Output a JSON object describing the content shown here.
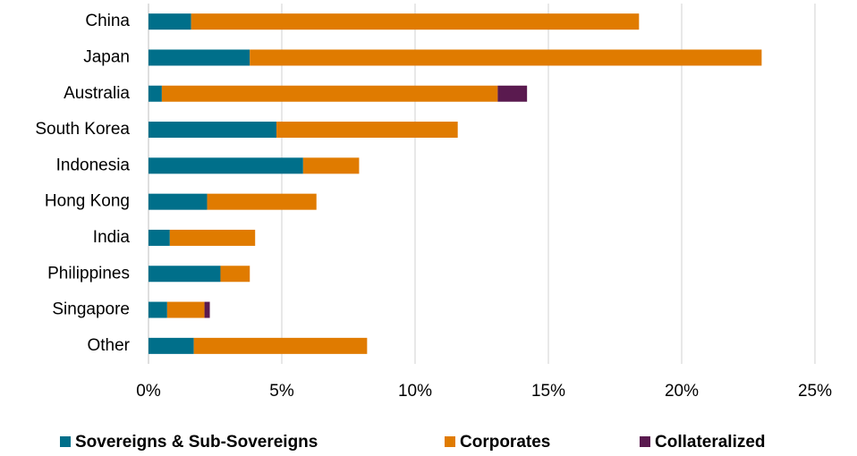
{
  "chart_data": {
    "type": "hbar_stacked",
    "categories": [
      "China",
      "Japan",
      "Australia",
      "South Korea",
      "Indonesia",
      "Hong Kong",
      "India",
      "Philippines",
      "Singapore",
      "Other"
    ],
    "series": [
      {
        "name": "Sovereigns & Sub-Sovereigns",
        "color": "#006f8a",
        "values": [
          1.6,
          3.8,
          0.5,
          4.8,
          5.8,
          2.2,
          0.8,
          2.7,
          0.7,
          1.7
        ]
      },
      {
        "name": "Corporates",
        "color": "#e07b00",
        "values": [
          16.8,
          19.2,
          12.6,
          6.8,
          2.1,
          4.1,
          3.2,
          1.1,
          1.4,
          6.5
        ]
      },
      {
        "name": "Collateralized",
        "color": "#5a1a4f",
        "values": [
          0,
          0,
          1.1,
          0,
          0,
          0,
          0,
          0,
          0.2,
          0
        ]
      }
    ],
    "xlim": [
      0,
      25
    ],
    "xticks": [
      {
        "value": 0,
        "label": "0%"
      },
      {
        "value": 5,
        "label": "5%"
      },
      {
        "value": 10,
        "label": "10%"
      },
      {
        "value": 15,
        "label": "15%"
      },
      {
        "value": 20,
        "label": "20%"
      },
      {
        "value": 25,
        "label": "25%"
      }
    ],
    "grid": true,
    "legend": "bottom"
  }
}
